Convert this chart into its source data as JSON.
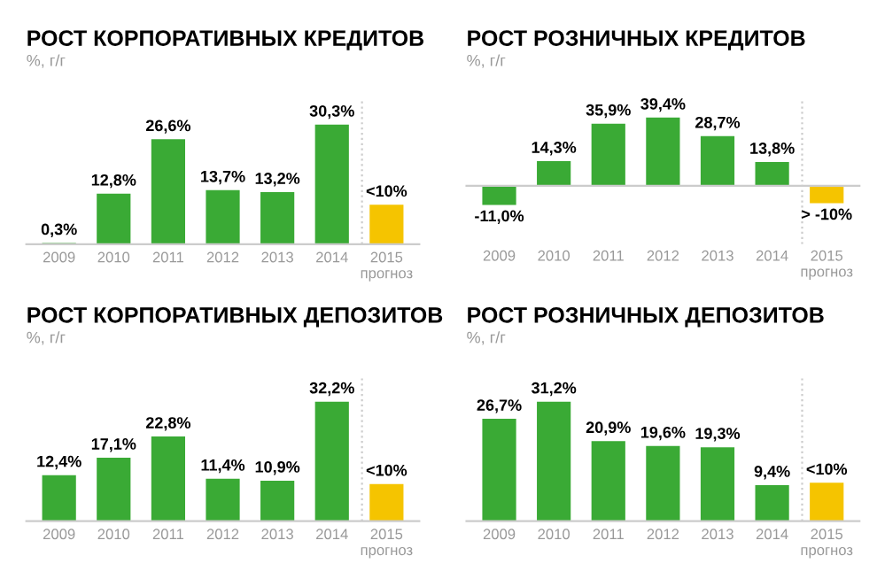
{
  "chart_data": [
    {
      "type": "bar",
      "title": "РОСТ КОРПОРАТИВНЫХ КРЕДИТОВ",
      "subtitle": "%, г/г",
      "categories": [
        "2009",
        "2010",
        "2011",
        "2012",
        "2013",
        "2014",
        "2015\nпрогноз"
      ],
      "values": [
        0.3,
        12.8,
        26.6,
        13.7,
        13.2,
        30.3,
        10
      ],
      "value_labels": [
        "0,3%",
        "12,8%",
        "26,6%",
        "13,7%",
        "13,2%",
        "30,3%",
        "<10%"
      ],
      "colors": [
        "#3aaa35",
        "#3aaa35",
        "#3aaa35",
        "#3aaa35",
        "#3aaa35",
        "#3aaa35",
        "#f5c400"
      ]
    },
    {
      "type": "bar",
      "title": "РОСТ РОЗНИЧНЫХ КРЕДИТОВ",
      "subtitle": "%, г/г",
      "categories": [
        "2009",
        "2010",
        "2011",
        "2012",
        "2013",
        "2014",
        "2015\nпрогноз"
      ],
      "values": [
        -11.0,
        14.3,
        35.9,
        39.4,
        28.7,
        13.8,
        -10
      ],
      "value_labels": [
        "-11,0%",
        "14,3%",
        "35,9%",
        "39,4%",
        "28,7%",
        "13,8%",
        "> -10%"
      ],
      "colors": [
        "#3aaa35",
        "#3aaa35",
        "#3aaa35",
        "#3aaa35",
        "#3aaa35",
        "#3aaa35",
        "#f5c400"
      ]
    },
    {
      "type": "bar",
      "title": "РОСТ КОРПОРАТИВНЫХ ДЕПОЗИТОВ",
      "subtitle": "%, г/г",
      "categories": [
        "2009",
        "2010",
        "2011",
        "2012",
        "2013",
        "2014",
        "2015\nпрогноз"
      ],
      "values": [
        12.4,
        17.1,
        22.8,
        11.4,
        10.9,
        32.2,
        10
      ],
      "value_labels": [
        "12,4%",
        "17,1%",
        "22,8%",
        "11,4%",
        "10,9%",
        "32,2%",
        "<10%"
      ],
      "colors": [
        "#3aaa35",
        "#3aaa35",
        "#3aaa35",
        "#3aaa35",
        "#3aaa35",
        "#3aaa35",
        "#f5c400"
      ]
    },
    {
      "type": "bar",
      "title": "РОСТ РОЗНИЧНЫХ ДЕПОЗИТОВ",
      "subtitle": "%, г/г",
      "categories": [
        "2009",
        "2010",
        "2011",
        "2012",
        "2013",
        "2014",
        "2015\nпрогноз"
      ],
      "values": [
        26.7,
        31.2,
        20.9,
        19.6,
        19.3,
        9.4,
        10
      ],
      "value_labels": [
        "26,7%",
        "31,2%",
        "20,9%",
        "19,6%",
        "19,3%",
        "9,4%",
        "<10%"
      ],
      "colors": [
        "#3aaa35",
        "#3aaa35",
        "#3aaa35",
        "#3aaa35",
        "#3aaa35",
        "#3aaa35",
        "#f5c400"
      ]
    }
  ]
}
